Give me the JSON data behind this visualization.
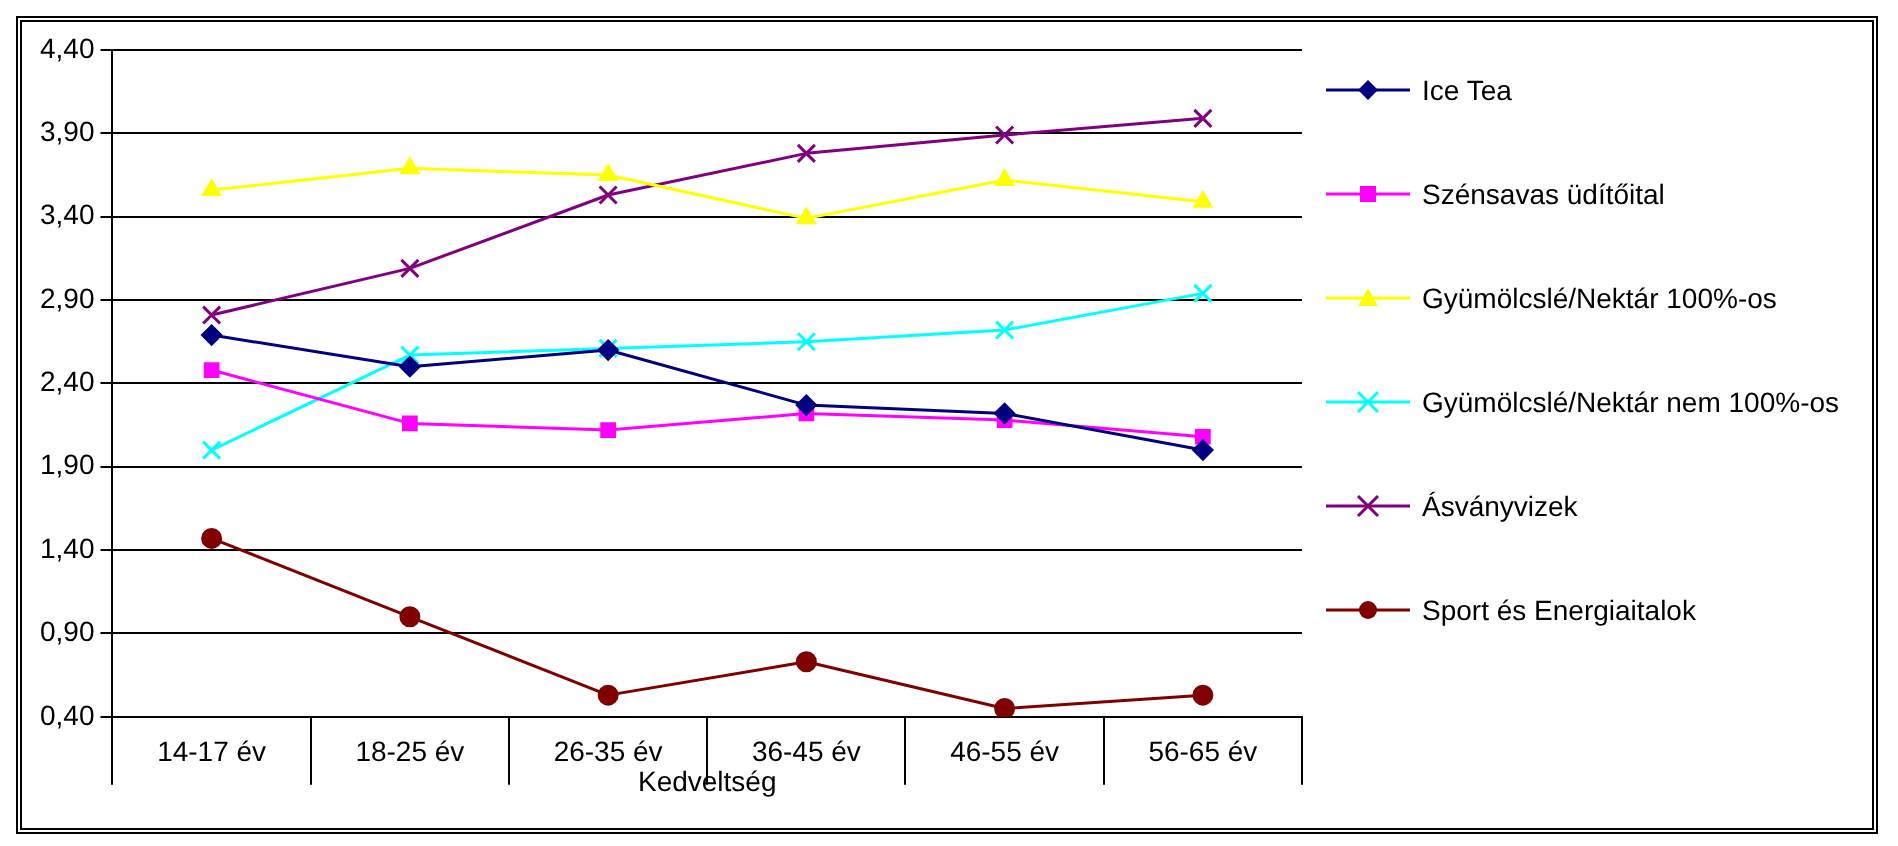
{
  "chart_data": {
    "type": "line",
    "categories": [
      "14-17 év",
      "18-25 év",
      "26-35 év",
      "36-45 év",
      "46-55 év",
      "56-65 év"
    ],
    "xlabel": "Kedveltség",
    "series": [
      {
        "name": "Ice Tea",
        "color": "#000080",
        "marker": "diamond",
        "values": [
          2.69,
          2.5,
          2.6,
          2.27,
          2.22,
          2.0
        ]
      },
      {
        "name": "Szénsavas üdítőital",
        "color": "#ff00ff",
        "marker": "square",
        "values": [
          2.48,
          2.16,
          2.12,
          2.22,
          2.18,
          2.08
        ]
      },
      {
        "name": "Gyümölcslé/Nektár 100%-os",
        "color": "#ffff00",
        "marker": "triangle",
        "values": [
          3.56,
          3.69,
          3.65,
          3.39,
          3.62,
          3.49
        ]
      },
      {
        "name": "Gyümölcslé/Nektár nem 100%-os",
        "color": "#00ffff",
        "marker": "cross",
        "values": [
          2.0,
          2.57,
          2.61,
          2.65,
          2.72,
          2.94
        ]
      },
      {
        "name": "Ásványvizek",
        "color": "#800080",
        "marker": "cross",
        "values": [
          2.81,
          3.09,
          3.53,
          3.78,
          3.89,
          3.99
        ]
      },
      {
        "name": "Sport és Energiaitalok",
        "color": "#800000",
        "marker": "circle",
        "values": [
          1.47,
          1.0,
          0.53,
          0.73,
          0.45,
          0.53
        ]
      }
    ],
    "ylim": [
      0.4,
      4.4
    ],
    "yticks": [
      {
        "value": 0.4,
        "label": "0,40"
      },
      {
        "value": 0.9,
        "label": "0,90"
      },
      {
        "value": 1.4,
        "label": "1,40"
      },
      {
        "value": 1.9,
        "label": "1,90"
      },
      {
        "value": 2.4,
        "label": "2,40"
      },
      {
        "value": 2.9,
        "label": "2,90"
      },
      {
        "value": 3.4,
        "label": "3,40"
      },
      {
        "value": 3.9,
        "label": "3,90"
      },
      {
        "value": 4.4,
        "label": "4,40"
      }
    ],
    "grid": "y",
    "legend": "right",
    "line_style": "solid"
  }
}
